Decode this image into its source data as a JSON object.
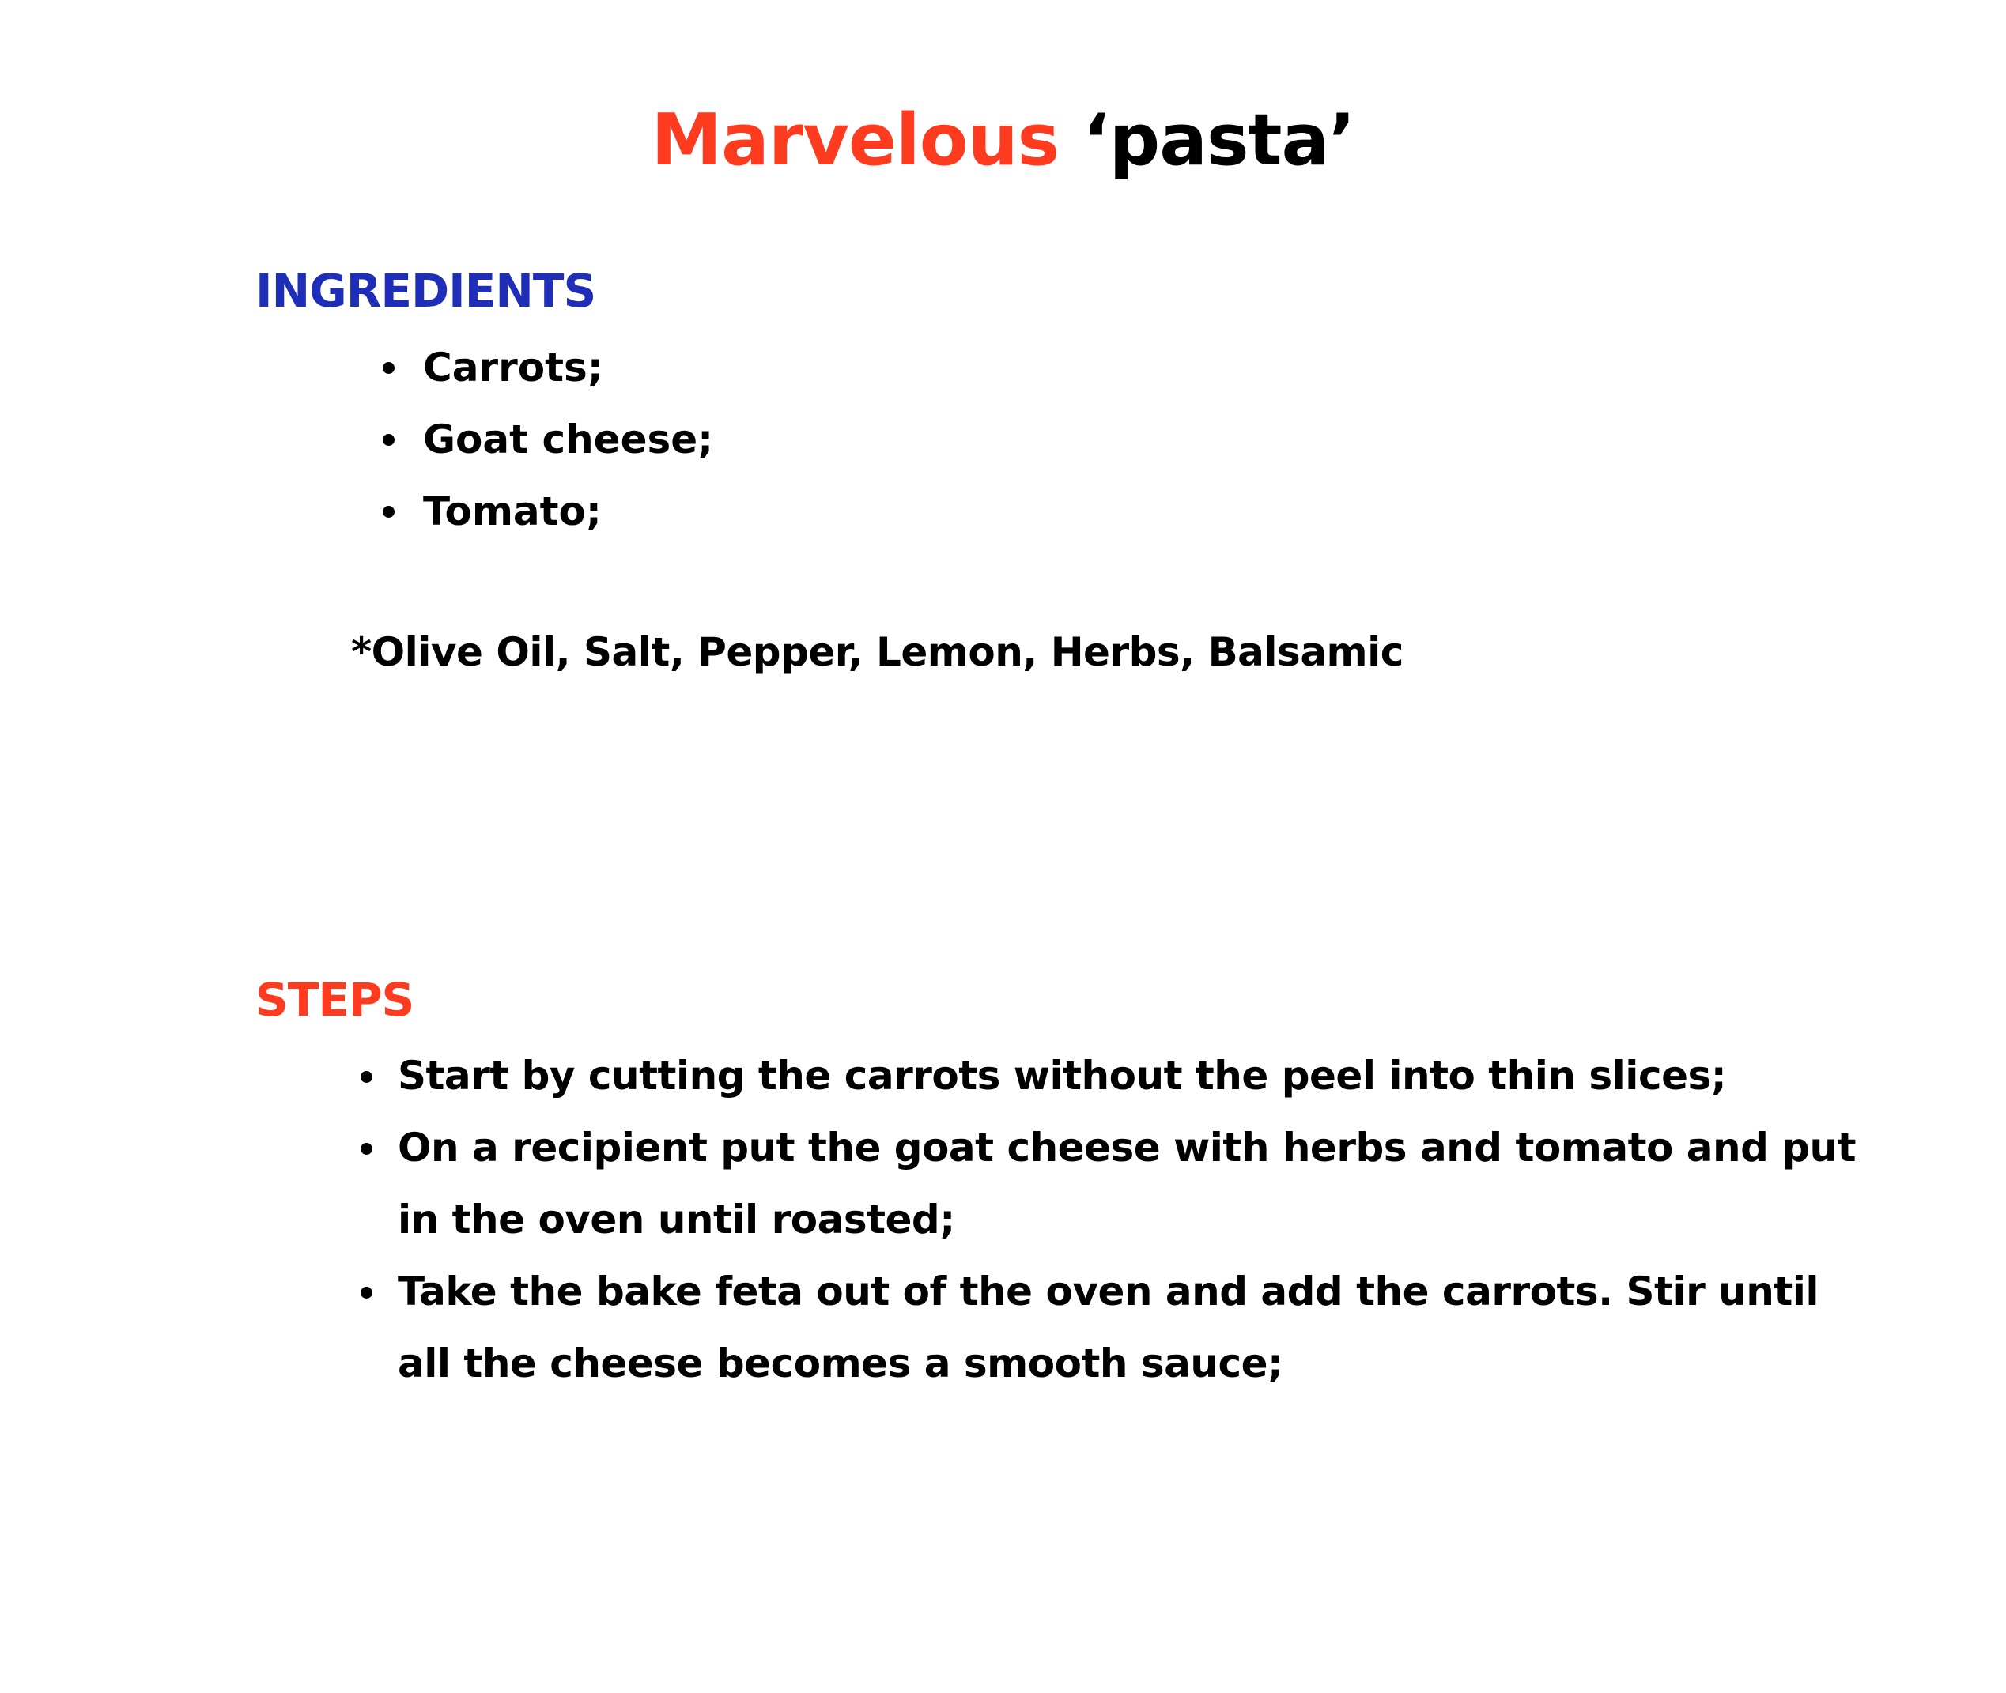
{
  "title": {
    "accent": "Marvelous",
    "rest": "‘pasta’"
  },
  "ingredients": {
    "heading": "INGREDIENTS",
    "items": [
      "Carrots;",
      "Goat cheese;",
      "Tomato;"
    ],
    "note": "*Olive Oil, Salt, Pepper, Lemon, Herbs, Balsamic"
  },
  "steps": {
    "heading": "STEPS",
    "items": [
      [
        "Start by cutting the carrots without the peel into thin slices;"
      ],
      [
        "On a recipient put the goat cheese with herbs and tomato and put",
        "in the oven until roasted;"
      ],
      [
        "Take the bake feta out of the oven and add the carrots. Stir until",
        "all the cheese becomes a smooth sauce;"
      ]
    ]
  },
  "colors": {
    "accent_red": "#FF3B1F",
    "heading_blue": "#1E2EB8",
    "text": "#000000",
    "background": "#FFFFFF"
  }
}
